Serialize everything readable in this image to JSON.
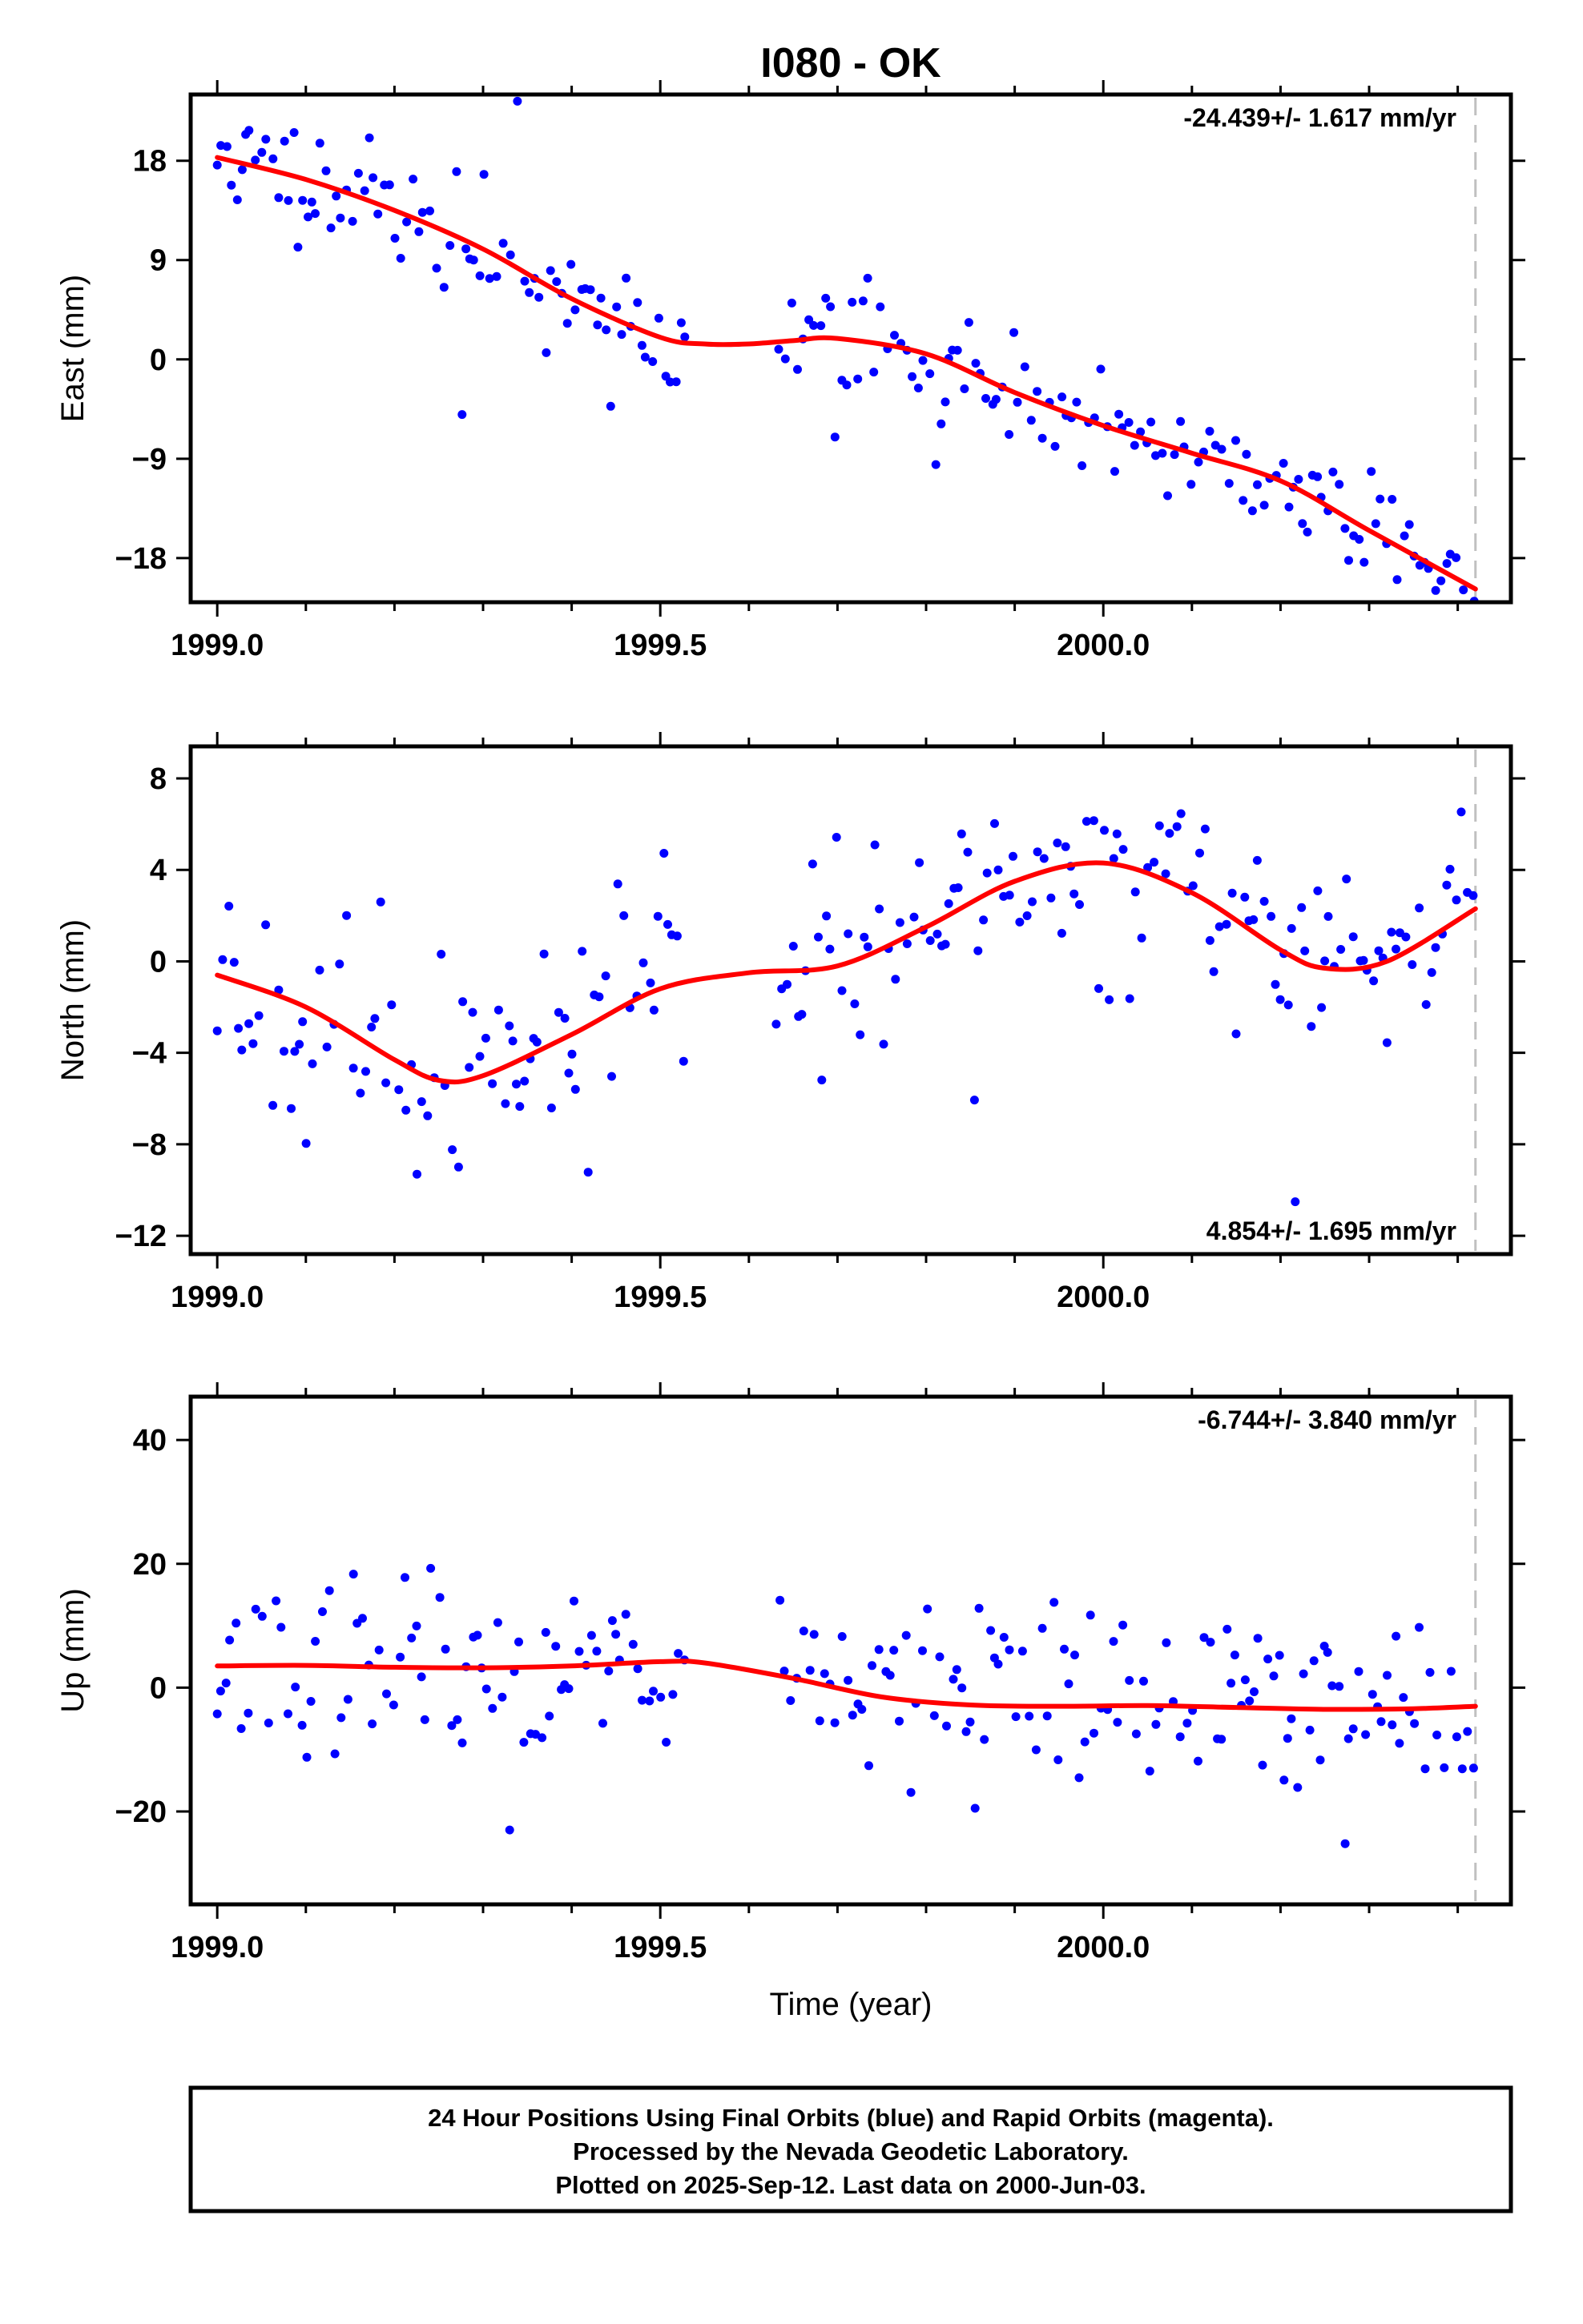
{
  "figure": {
    "title": "I080 - OK",
    "xlabel": "Time (year)",
    "footer": [
      "24 Hour Positions Using Final Orbits (blue) and Rapid Orbits (magenta).",
      "Processed by the Nevada Geodetic Laboratory.",
      "Plotted on 2025-Sep-12. Last data on 2000-Jun-03."
    ],
    "colors": {
      "final_orbits": "#0000ff",
      "model": "#ff0000",
      "frame": "#000000",
      "last_epoch_line": "#c0c0c0"
    }
  },
  "chart_data": [
    {
      "type": "scatter",
      "component": "east",
      "ylabel": "East (mm)",
      "rate_label": "-24.439+/- 1.617 mm/yr",
      "xlim": [
        1998.97,
        2000.46
      ],
      "ylim": [
        -22,
        24
      ],
      "x_ticks": [
        1999.0,
        1999.5,
        2000.0
      ],
      "x_tick_labels": [
        "1999.0",
        "1999.5",
        "2000.0"
      ],
      "y_ticks": [
        18,
        9,
        0,
        -9,
        -18
      ],
      "y_tick_labels": [
        "18",
        "9",
        "0",
        "−9",
        "−18"
      ],
      "last_epoch": 2000.42,
      "data_gap": [
        1999.53,
        1999.63
      ],
      "model": {
        "x": [
          1999.0,
          1999.1,
          1999.2,
          1999.3,
          1999.4,
          1999.5,
          1999.55,
          1999.6,
          1999.65,
          1999.7,
          1999.8,
          1999.9,
          2000.0,
          2000.1,
          2000.2,
          2000.3,
          2000.42
        ],
        "y": [
          18.3,
          16.3,
          13.5,
          10.0,
          5.5,
          2.0,
          1.4,
          1.4,
          1.7,
          1.9,
          0.5,
          -3.0,
          -6.0,
          -8.5,
          -11.0,
          -15.5,
          -20.8
        ]
      },
      "scatter": {
        "seed": 11,
        "noise": 2.5,
        "step_days": 2.2,
        "outlier_rate": 0.03,
        "outlier_scale": 4
      }
    },
    {
      "type": "scatter",
      "component": "north",
      "ylabel": "North (mm)",
      "rate_label": "4.854+/- 1.695 mm/yr",
      "xlim": [
        1998.97,
        2000.46
      ],
      "ylim": [
        -12.8,
        9.4
      ],
      "x_ticks": [
        1999.0,
        1999.5,
        2000.0
      ],
      "x_tick_labels": [
        "1999.0",
        "1999.5",
        "2000.0"
      ],
      "y_ticks": [
        8,
        4,
        0,
        -4,
        -8,
        -12
      ],
      "y_tick_labels": [
        "8",
        "4",
        "0",
        "−4",
        "−8",
        "−12"
      ],
      "last_epoch": 2000.42,
      "data_gap": [
        1999.53,
        1999.63
      ],
      "model": {
        "x": [
          1999.0,
          1999.1,
          1999.2,
          1999.25,
          1999.3,
          1999.4,
          1999.5,
          1999.6,
          1999.7,
          1999.8,
          1999.9,
          2000.0,
          2000.1,
          2000.2,
          2000.25,
          2000.32,
          2000.42
        ],
        "y": [
          -0.6,
          -2.0,
          -4.3,
          -5.2,
          -5.0,
          -3.2,
          -1.2,
          -0.5,
          -0.2,
          1.5,
          3.5,
          4.3,
          3.0,
          0.5,
          -0.3,
          0.0,
          2.3
        ]
      },
      "scatter": {
        "seed": 23,
        "noise": 2.2,
        "step_days": 2.2,
        "outlier_rate": 0.03,
        "outlier_scale": 3
      }
    },
    {
      "type": "scatter",
      "component": "up",
      "ylabel": "Up (mm)",
      "rate_label": "-6.744+/- 3.840 mm/yr",
      "xlim": [
        1998.97,
        2000.46
      ],
      "ylim": [
        -35,
        47
      ],
      "x_ticks": [
        1999.0,
        1999.5,
        2000.0
      ],
      "x_tick_labels": [
        "1999.0",
        "1999.5",
        "2000.0"
      ],
      "y_ticks": [
        40,
        20,
        0,
        -20
      ],
      "y_tick_labels": [
        "40",
        "20",
        "0",
        "−20"
      ],
      "last_epoch": 2000.42,
      "data_gap": [
        1999.53,
        1999.63
      ],
      "model": {
        "x": [
          1999.0,
          1999.1,
          1999.2,
          1999.3,
          1999.4,
          1999.5,
          1999.55,
          1999.65,
          1999.75,
          1999.85,
          1999.95,
          2000.05,
          2000.15,
          2000.25,
          2000.35,
          2000.42
        ],
        "y": [
          3.5,
          3.6,
          3.3,
          3.2,
          3.5,
          4.2,
          4.0,
          1.5,
          -1.5,
          -2.8,
          -3.0,
          -2.9,
          -3.2,
          -3.5,
          -3.4,
          -3.0
        ]
      },
      "scatter": {
        "seed": 37,
        "noise": 7.0,
        "step_days": 2.2,
        "outlier_rate": 0.03,
        "outlier_scale": 4
      }
    }
  ]
}
